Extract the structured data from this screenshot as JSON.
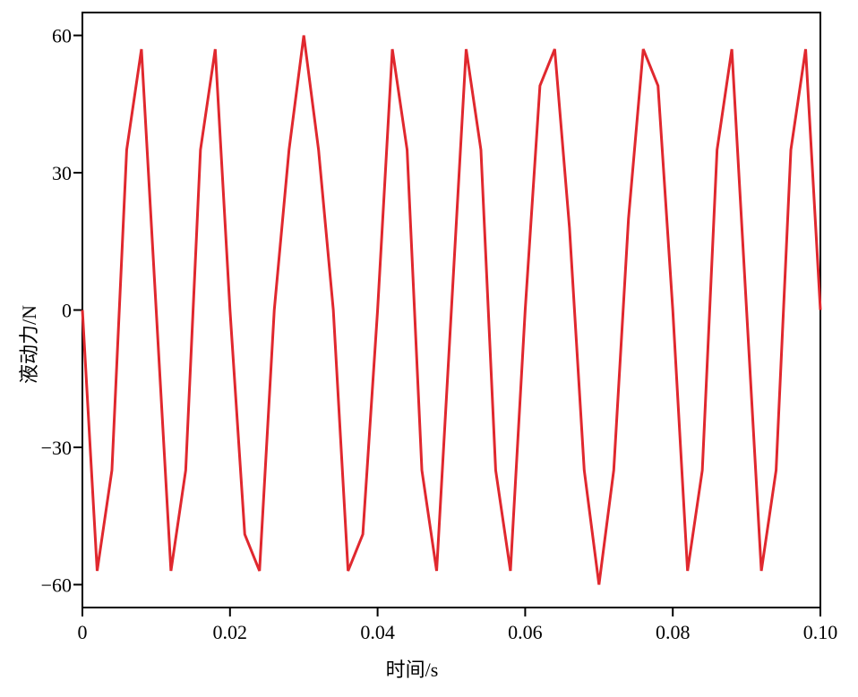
{
  "chart_data": {
    "type": "line",
    "xlabel": "时间/s",
    "ylabel": "液动力/N",
    "x": [
      0,
      0.002,
      0.004,
      0.006,
      0.008,
      0.01,
      0.012,
      0.014,
      0.016,
      0.018,
      0.02,
      0.022,
      0.024,
      0.026,
      0.028,
      0.03,
      0.032,
      0.034,
      0.036,
      0.038,
      0.04,
      0.042,
      0.044,
      0.046,
      0.048,
      0.05,
      0.052,
      0.054,
      0.056,
      0.058,
      0.06,
      0.062,
      0.064,
      0.066,
      0.068,
      0.07,
      0.072,
      0.074,
      0.076,
      0.078,
      0.08,
      0.082,
      0.084,
      0.086,
      0.088,
      0.09,
      0.092,
      0.094,
      0.096,
      0.098,
      0.1
    ],
    "series": [
      {
        "color": "#e0282e",
        "values": [
          0,
          -57,
          -35,
          35,
          57,
          0,
          -57,
          -35,
          35,
          57,
          0,
          -49,
          -57,
          0,
          35,
          60,
          35,
          0,
          -57,
          -49,
          0,
          57,
          35,
          -35,
          -57,
          0,
          57,
          35,
          -35,
          -57,
          0,
          49,
          57,
          18,
          -35,
          -60,
          -35,
          20,
          57,
          49,
          0,
          -57,
          -35,
          35,
          57,
          0,
          -57,
          -35,
          35,
          57,
          0
        ]
      }
    ],
    "xlim": [
      0,
      0.1
    ],
    "xticks": [
      0,
      0.02,
      0.04,
      0.06,
      0.08,
      {
        "value": 0.1,
        "label": "0.10"
      }
    ],
    "ylim": [
      -65,
      65
    ],
    "yticks": [
      {
        "value": -60,
        "label": "−60"
      },
      {
        "value": -30,
        "label": "−30"
      },
      0,
      30,
      60
    ]
  }
}
